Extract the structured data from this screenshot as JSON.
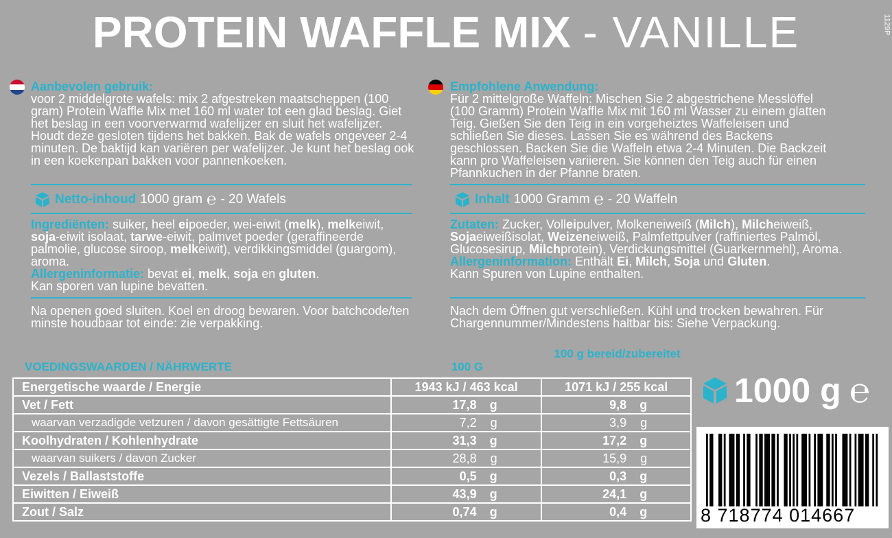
{
  "header": {
    "title_bold": "PROTEIN WAFFLE MIX",
    "title_light": "- VANILLE",
    "side_code": "1129P"
  },
  "nl": {
    "heading": "Aanbevolen gebruik:",
    "usage": "voor 2 middelgrote wafels: mix 2 afgestreken maatscheppen (100 gram) Protein Waffle Mix met 160 ml water tot een glad beslag. Giet het beslag in een voorverwarmd wafelijzer en sluit het wafelijzer. Houdt deze gesloten tijdens het bakken. Bak de wafels ongeveer 2-4 minuten. De baktijd kan variëren per wafelijzer. Je kunt het beslag ook in een koekenpan bakken voor pannenkoeken.",
    "net_label": "Netto-inhoud",
    "net_value": "1000 gram",
    "net_mark": "℮",
    "net_suffix": "- 20 Wafels",
    "ingredients_heading": "Ingrediënten:",
    "ingredients": [
      " suiker, heel ",
      {
        "text": "ei",
        "bold": true
      },
      "poeder, wei-eiwit (",
      {
        "text": "melk",
        "bold": true
      },
      "), ",
      {
        "text": "melk",
        "bold": true
      },
      "eiwit, ",
      {
        "text": "soja",
        "bold": true
      },
      "-eiwit isolaat, ",
      {
        "text": "tarwe",
        "bold": true
      },
      "-eiwit, palmvet poeder (geraffineerde palmolie, glucose siroop, ",
      {
        "text": "melk",
        "bold": true
      },
      "eiwit), verdikkingsmiddel (guargom), aroma."
    ],
    "allergen_heading": "Allergeninformatie:",
    "allergen": [
      " bevat ",
      {
        "text": "ei",
        "bold": true
      },
      ", ",
      {
        "text": "melk",
        "bold": true
      },
      ", ",
      {
        "text": "soja",
        "bold": true
      },
      " en ",
      {
        "text": "gluten",
        "bold": true
      },
      "."
    ],
    "traces": "Kan sporen van lupine bevatten.",
    "storage": "Na openen goed sluiten. Koel en droog bewaren. Voor batchcode/ten minste houdbaar tot einde: zie verpakking."
  },
  "de": {
    "heading": "Empfohlene Anwendung:",
    "usage": "Für 2 mittelgroße Waffeln: Mischen Sie 2 abgestrichene Messlöffel (100 Gramm) Protein Waffle Mix mit 160 ml Wasser zu einem glatten Teig. Gießen Sie den Teig in ein vorgeheiztes Waffeleisen und schließen Sie dieses. Lassen Sie es während des Backens geschlossen. Backen Sie die Waffeln etwa 2-4 Minuten. Die Backzeit kann pro Waffeleisen variieren. Sie können den Teig auch für einen Pfannkuchen in der Pfanne braten.",
    "net_label": "Inhalt",
    "net_value": "1000 Gramm",
    "net_mark": "℮",
    "net_suffix": "- 20 Waffeln",
    "ingredients_heading": "Zutaten:",
    "ingredients": [
      " Zucker, Voll",
      {
        "text": "ei",
        "bold": true
      },
      "pulver, Molkeneiweiß (",
      {
        "text": "Milch",
        "bold": true
      },
      "), ",
      {
        "text": "Milch",
        "bold": true
      },
      "eiweiß, ",
      {
        "text": "Soja",
        "bold": true
      },
      "eiweißisolat, ",
      {
        "text": "Weizen",
        "bold": true
      },
      "eiweiß, Palmfettpulver (raffiniertes Palmöl, Glucosesirup, ",
      {
        "text": "Milch",
        "bold": true
      },
      "protein), Verdickungsmittel (Guarkernmehl), Aroma."
    ],
    "allergen_heading": "Allergeninformation:",
    "allergen": [
      " Enthält ",
      {
        "text": "Ei",
        "bold": true
      },
      ", ",
      {
        "text": "Milch",
        "bold": true
      },
      ", ",
      {
        "text": "Soja",
        "bold": true
      },
      " und ",
      {
        "text": "Gluten",
        "bold": true
      },
      "."
    ],
    "traces": "Kann Spuren von Lupine enthalten.",
    "storage": "Nach dem Öffnen gut verschließen. Kühl und trocken bewahren. Für Chargennummer/Mindestens haltbar bis: Siehe Verpackung."
  },
  "nutrition": {
    "title": "VOEDINGSWAARDEN / NÄHRWERTE",
    "col1": "100 G",
    "col2": "100 g bereid/zubereitet",
    "rows": [
      {
        "label": "Energetische waarde / Energie",
        "v1": "1943 kJ / 463 kcal",
        "v2": "1071 kJ / 255 kcal"
      },
      {
        "label": "Vet / Fett",
        "v1": "17,8",
        "u1": "g",
        "v2": "9,8",
        "u2": "g"
      },
      {
        "label": "waarvan verzadigde vetzuren / davon gesättigte Fettsäuren",
        "v1": "7,2",
        "u1": "g",
        "v2": "3,9",
        "u2": "g",
        "sub": true
      },
      {
        "label": "Koolhydraten / Kohlenhydrate",
        "v1": "31,3",
        "u1": "g",
        "v2": "17,2",
        "u2": "g"
      },
      {
        "label": "waarvan suikers / davon Zucker",
        "v1": "28,8",
        "u1": "g",
        "v2": "15,9",
        "u2": "g",
        "sub": true
      },
      {
        "label": "Vezels / Ballaststoffe",
        "v1": "0,5",
        "u1": "g",
        "v2": "0,3",
        "u2": "g"
      },
      {
        "label": "Eiwitten / Eiweiß",
        "v1": "43,9",
        "u1": "g",
        "v2": "24,1",
        "u2": "g"
      },
      {
        "label": "Zout / Salz",
        "v1": "0,74",
        "u1": "g",
        "v2": "0,4",
        "u2": "g"
      }
    ]
  },
  "package": {
    "weight": "1000 g",
    "mark": "℮",
    "barcode": "8 718774 014667"
  }
}
